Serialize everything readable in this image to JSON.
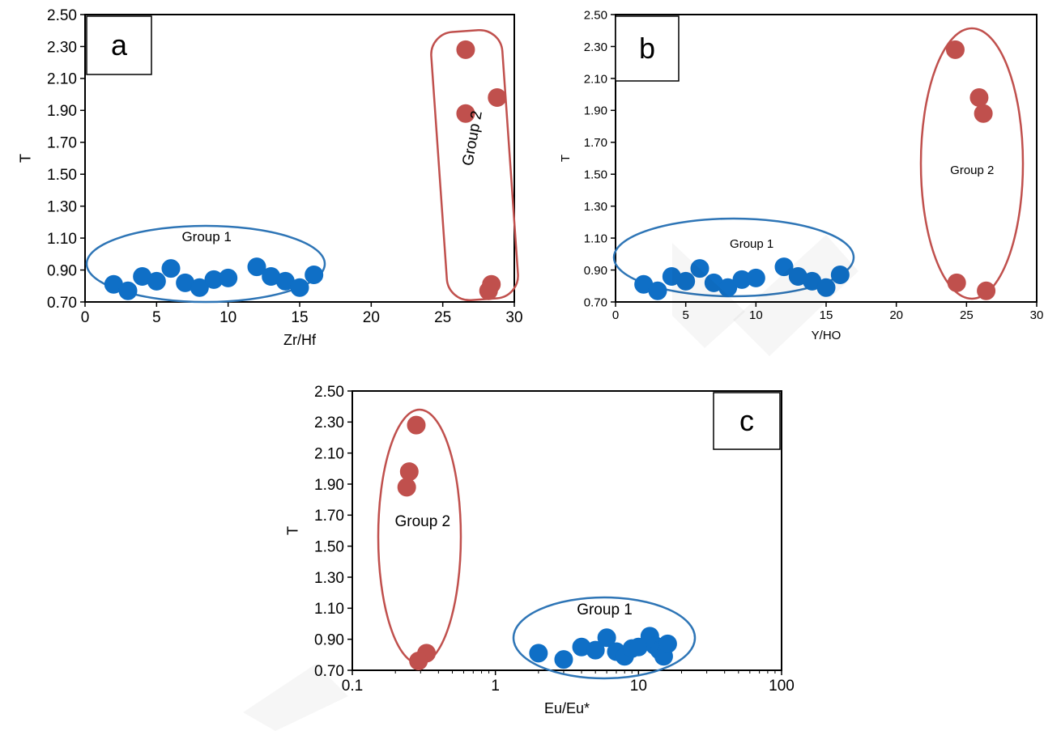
{
  "chart_data": [
    {
      "panel": "a",
      "type": "scatter",
      "panel_label": "a",
      "xlabel": "Zr/Hf",
      "ylabel": "T",
      "xscale": "linear",
      "xlim": [
        0,
        30
      ],
      "ylim": [
        0.7,
        2.5
      ],
      "xticks": [
        "0",
        "5",
        "10",
        "15",
        "20",
        "25",
        "30"
      ],
      "yticks": [
        "0.70",
        "0.90",
        "1.10",
        "1.30",
        "1.50",
        "1.70",
        "1.90",
        "2.10",
        "2.30",
        "2.50"
      ],
      "grid": false,
      "series": [
        {
          "name": "Group 1",
          "color": "#0f6fc6",
          "points": [
            [
              2,
              0.81
            ],
            [
              3,
              0.77
            ],
            [
              4,
              0.86
            ],
            [
              5,
              0.83
            ],
            [
              6,
              0.91
            ],
            [
              7,
              0.82
            ],
            [
              8,
              0.79
            ],
            [
              9,
              0.84
            ],
            [
              10,
              0.85
            ],
            [
              12,
              0.92
            ],
            [
              13,
              0.86
            ],
            [
              14,
              0.83
            ],
            [
              15,
              0.79
            ],
            [
              16,
              0.87
            ]
          ]
        },
        {
          "name": "Group 2",
          "color": "#c0504d",
          "points": [
            [
              26.6,
              2.28
            ],
            [
              26.6,
              1.88
            ],
            [
              28.8,
              1.98
            ],
            [
              28.4,
              0.81
            ],
            [
              28.2,
              0.77
            ]
          ]
        }
      ],
      "annotations": [
        {
          "text": "Group 1",
          "x": 8.5,
          "y": 1.08,
          "rotate": 0
        },
        {
          "text": "Group 2",
          "x": 27.4,
          "y": 1.72,
          "rotate": -80
        }
      ]
    },
    {
      "panel": "b",
      "type": "scatter",
      "panel_label": "b",
      "xlabel": "Y/HO",
      "ylabel": "T",
      "xscale": "linear",
      "xlim": [
        0,
        30
      ],
      "ylim": [
        0.7,
        2.5
      ],
      "xticks": [
        "0",
        "5",
        "10",
        "15",
        "20",
        "25",
        "30"
      ],
      "yticks": [
        "0.70",
        "0.90",
        "1.10",
        "1.30",
        "1.50",
        "1.70",
        "1.90",
        "2.10",
        "2.30",
        "2.50"
      ],
      "grid": false,
      "series": [
        {
          "name": "Group 1",
          "color": "#0f6fc6",
          "points": [
            [
              2,
              0.81
            ],
            [
              3,
              0.77
            ],
            [
              4,
              0.86
            ],
            [
              5,
              0.83
            ],
            [
              6,
              0.91
            ],
            [
              7,
              0.82
            ],
            [
              8,
              0.79
            ],
            [
              9,
              0.84
            ],
            [
              10,
              0.85
            ],
            [
              12,
              0.92
            ],
            [
              13,
              0.86
            ],
            [
              14,
              0.83
            ],
            [
              15,
              0.79
            ],
            [
              16,
              0.87
            ]
          ]
        },
        {
          "name": "Group 2",
          "color": "#c0504d",
          "points": [
            [
              24.2,
              2.28
            ],
            [
              25.9,
              1.98
            ],
            [
              26.2,
              1.88
            ],
            [
              24.3,
              0.82
            ],
            [
              26.4,
              0.77
            ]
          ]
        }
      ],
      "annotations": [
        {
          "text": "Group 1",
          "x": 9.7,
          "y": 1.04,
          "rotate": 0
        },
        {
          "text": "Group 2",
          "x": 25.4,
          "y": 1.5,
          "rotate": 0
        }
      ]
    },
    {
      "panel": "c",
      "type": "scatter",
      "panel_label": "c",
      "xlabel": "Eu/Eu*",
      "ylabel": "T",
      "xscale": "log",
      "xlim": [
        0.1,
        100
      ],
      "ylim": [
        0.7,
        2.5
      ],
      "xticks": [
        "0.1",
        "1",
        "10",
        "100"
      ],
      "yticks": [
        "0.70",
        "0.90",
        "1.10",
        "1.30",
        "1.50",
        "1.70",
        "1.90",
        "2.10",
        "2.30",
        "2.50"
      ],
      "grid": false,
      "series": [
        {
          "name": "Group 1",
          "color": "#0f6fc6",
          "points": [
            [
              2,
              0.81
            ],
            [
              3,
              0.77
            ],
            [
              4,
              0.85
            ],
            [
              5,
              0.83
            ],
            [
              6,
              0.91
            ],
            [
              7,
              0.82
            ],
            [
              8,
              0.79
            ],
            [
              9,
              0.84
            ],
            [
              10,
              0.85
            ],
            [
              12,
              0.92
            ],
            [
              13,
              0.86
            ],
            [
              14,
              0.83
            ],
            [
              15,
              0.79
            ],
            [
              16,
              0.87
            ]
          ]
        },
        {
          "name": "Group 2",
          "color": "#c0504d",
          "points": [
            [
              0.28,
              2.28
            ],
            [
              0.25,
              1.98
            ],
            [
              0.24,
              1.88
            ],
            [
              0.33,
              0.81
            ],
            [
              0.29,
              0.76
            ]
          ]
        }
      ],
      "annotations": [
        {
          "text": "Group 1",
          "x": 5.8,
          "y": 1.06,
          "rotate": 0
        },
        {
          "text": "Group 2",
          "x": 0.31,
          "y": 1.63,
          "rotate": 0
        }
      ]
    }
  ]
}
